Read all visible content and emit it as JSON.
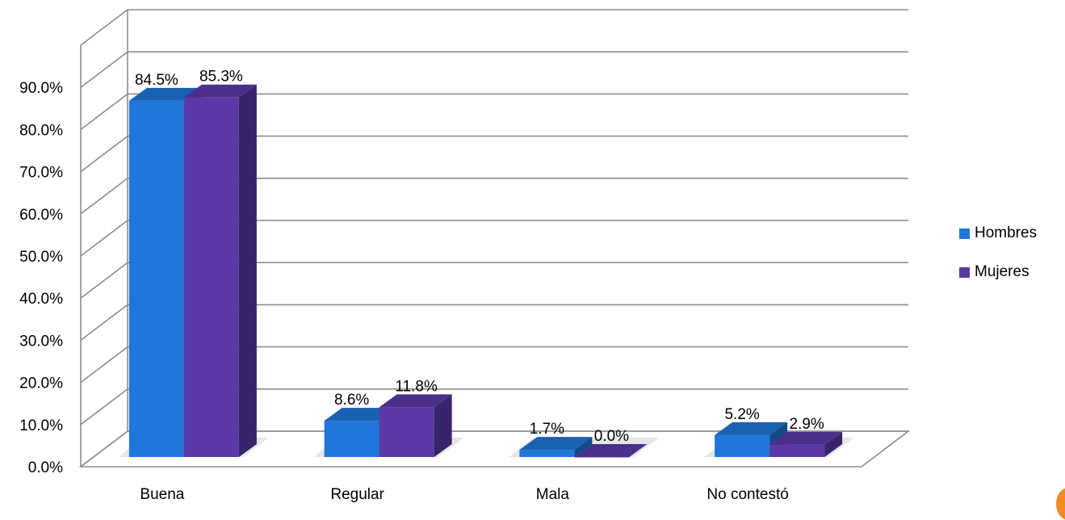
{
  "chart_data": {
    "type": "bar",
    "title": "",
    "xlabel": "",
    "ylabel": "",
    "categories": [
      "Buena",
      "Regular",
      "Mala",
      "No contestó"
    ],
    "series": [
      {
        "name": "Hombres",
        "values": [
          84.5,
          8.6,
          1.7,
          5.2
        ],
        "labels": [
          "84.5%",
          "8.6%",
          "1.7%",
          "5.2%"
        ],
        "color": "#2176d9"
      },
      {
        "name": "Mujeres",
        "values": [
          85.3,
          11.8,
          0.0,
          2.9
        ],
        "labels": [
          "85.3%",
          "11.8%",
          "0.0%",
          "2.9%"
        ],
        "color": "#5b3aa8"
      }
    ],
    "yticks": [
      "0.0%",
      "10.0%",
      "20.0%",
      "30.0%",
      "40.0%",
      "50.0%",
      "60.0%",
      "70.0%",
      "80.0%",
      "90.0%"
    ],
    "ylim": [
      0,
      100
    ],
    "grid": true,
    "legend": "right",
    "style": "3d-clustered-column"
  }
}
